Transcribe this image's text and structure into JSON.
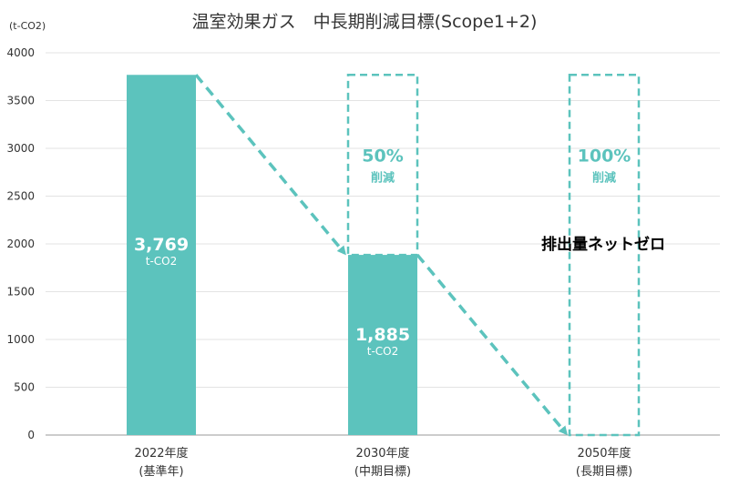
{
  "chart_data": {
    "type": "bar",
    "title": "温室効果ガス　中長期削減目標(Scope1+2)",
    "unit_label": "(t-CO2)",
    "ylim": [
      0,
      4000
    ],
    "y_ticks": [
      "0",
      "500",
      "1000",
      "1500",
      "2000",
      "2500",
      "3000",
      "3500",
      "4000"
    ],
    "grid": true,
    "categories": [
      {
        "line1": "2022年度",
        "line2": "(基準年)"
      },
      {
        "line1": "2030年度",
        "line2": "(中期目標)"
      },
      {
        "line1": "2050年度",
        "line2": "(長期目標)"
      }
    ],
    "values": [
      3769,
      1885,
      0
    ],
    "bar_labels": [
      {
        "value": "3,769",
        "unit": "t-CO2"
      },
      {
        "value": "1,885",
        "unit": "t-CO2"
      }
    ],
    "targets": [
      {
        "category_index": 1,
        "value": 3769,
        "pct": "50%",
        "text": "削減"
      },
      {
        "category_index": 2,
        "value": 3769,
        "pct": "100%",
        "text": "削減"
      }
    ],
    "annotation": "排出量ネットゼロ",
    "colors": {
      "bar": "#5cc3bd",
      "dashed": "#5cc3bd",
      "grid": "#e3e3e3",
      "axis": "#999999"
    }
  }
}
